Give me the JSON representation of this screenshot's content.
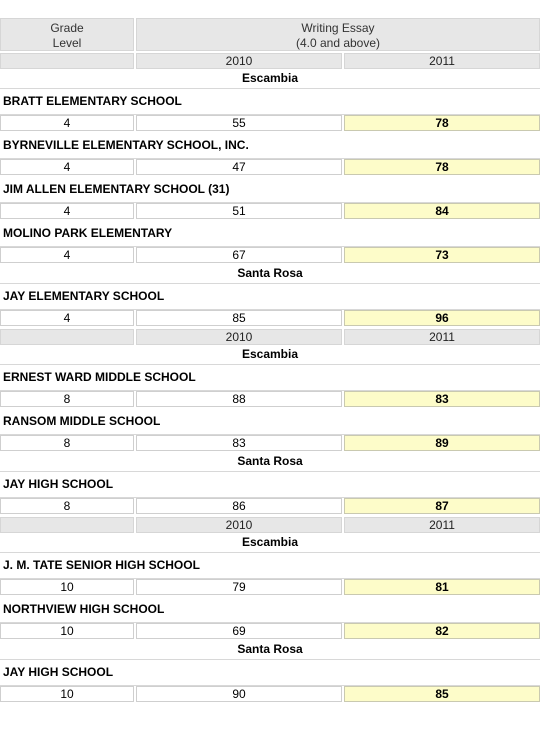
{
  "header": {
    "grade_level_line1": "Grade",
    "grade_level_line2": "Level",
    "metric_line1": "Writing Essay",
    "metric_line2": "(4.0 and above)"
  },
  "sections": [
    {
      "year_a": "2010",
      "year_b": "2011",
      "groups": [
        {
          "district": "Escambia",
          "schools": [
            {
              "name": "BRATT ELEMENTARY SCHOOL",
              "grade": "4",
              "v2010": "55",
              "v2011": "78"
            },
            {
              "name": "BYRNEVILLE ELEMENTARY SCHOOL, INC.",
              "grade": "4",
              "v2010": "47",
              "v2011": "78"
            },
            {
              "name": "JIM ALLEN ELEMENTARY SCHOOL (31)",
              "grade": "4",
              "v2010": "51",
              "v2011": "84"
            },
            {
              "name": "MOLINO PARK ELEMENTARY",
              "grade": "4",
              "v2010": "67",
              "v2011": "73"
            }
          ]
        },
        {
          "district": "Santa Rosa",
          "schools": [
            {
              "name": "JAY ELEMENTARY SCHOOL",
              "grade": "4",
              "v2010": "85",
              "v2011": "96"
            }
          ]
        }
      ]
    },
    {
      "year_a": "2010",
      "year_b": "2011",
      "groups": [
        {
          "district": "Escambia",
          "schools": [
            {
              "name": "ERNEST WARD MIDDLE SCHOOL",
              "grade": "8",
              "v2010": "88",
              "v2011": "83"
            },
            {
              "name": "RANSOM MIDDLE SCHOOL",
              "grade": "8",
              "v2010": "83",
              "v2011": "89"
            }
          ]
        },
        {
          "district": "Santa Rosa",
          "schools": [
            {
              "name": "JAY HIGH SCHOOL",
              "grade": "8",
              "v2010": "86",
              "v2011": "87"
            }
          ]
        }
      ]
    },
    {
      "year_a": "2010",
      "year_b": "2011",
      "groups": [
        {
          "district": "Escambia",
          "schools": [
            {
              "name": "J. M. TATE SENIOR HIGH SCHOOL",
              "grade": "10",
              "v2010": "79",
              "v2011": "81"
            },
            {
              "name": "NORTHVIEW HIGH SCHOOL",
              "grade": "10",
              "v2010": "69",
              "v2011": "82"
            }
          ]
        },
        {
          "district": "Santa Rosa",
          "schools": [
            {
              "name": "JAY HIGH SCHOOL",
              "grade": "10",
              "v2010": "90",
              "v2011": "85"
            }
          ]
        }
      ]
    }
  ],
  "colors": {
    "header_bg": "#e7e7e7",
    "highlight_bg": "#fdfcc9"
  }
}
